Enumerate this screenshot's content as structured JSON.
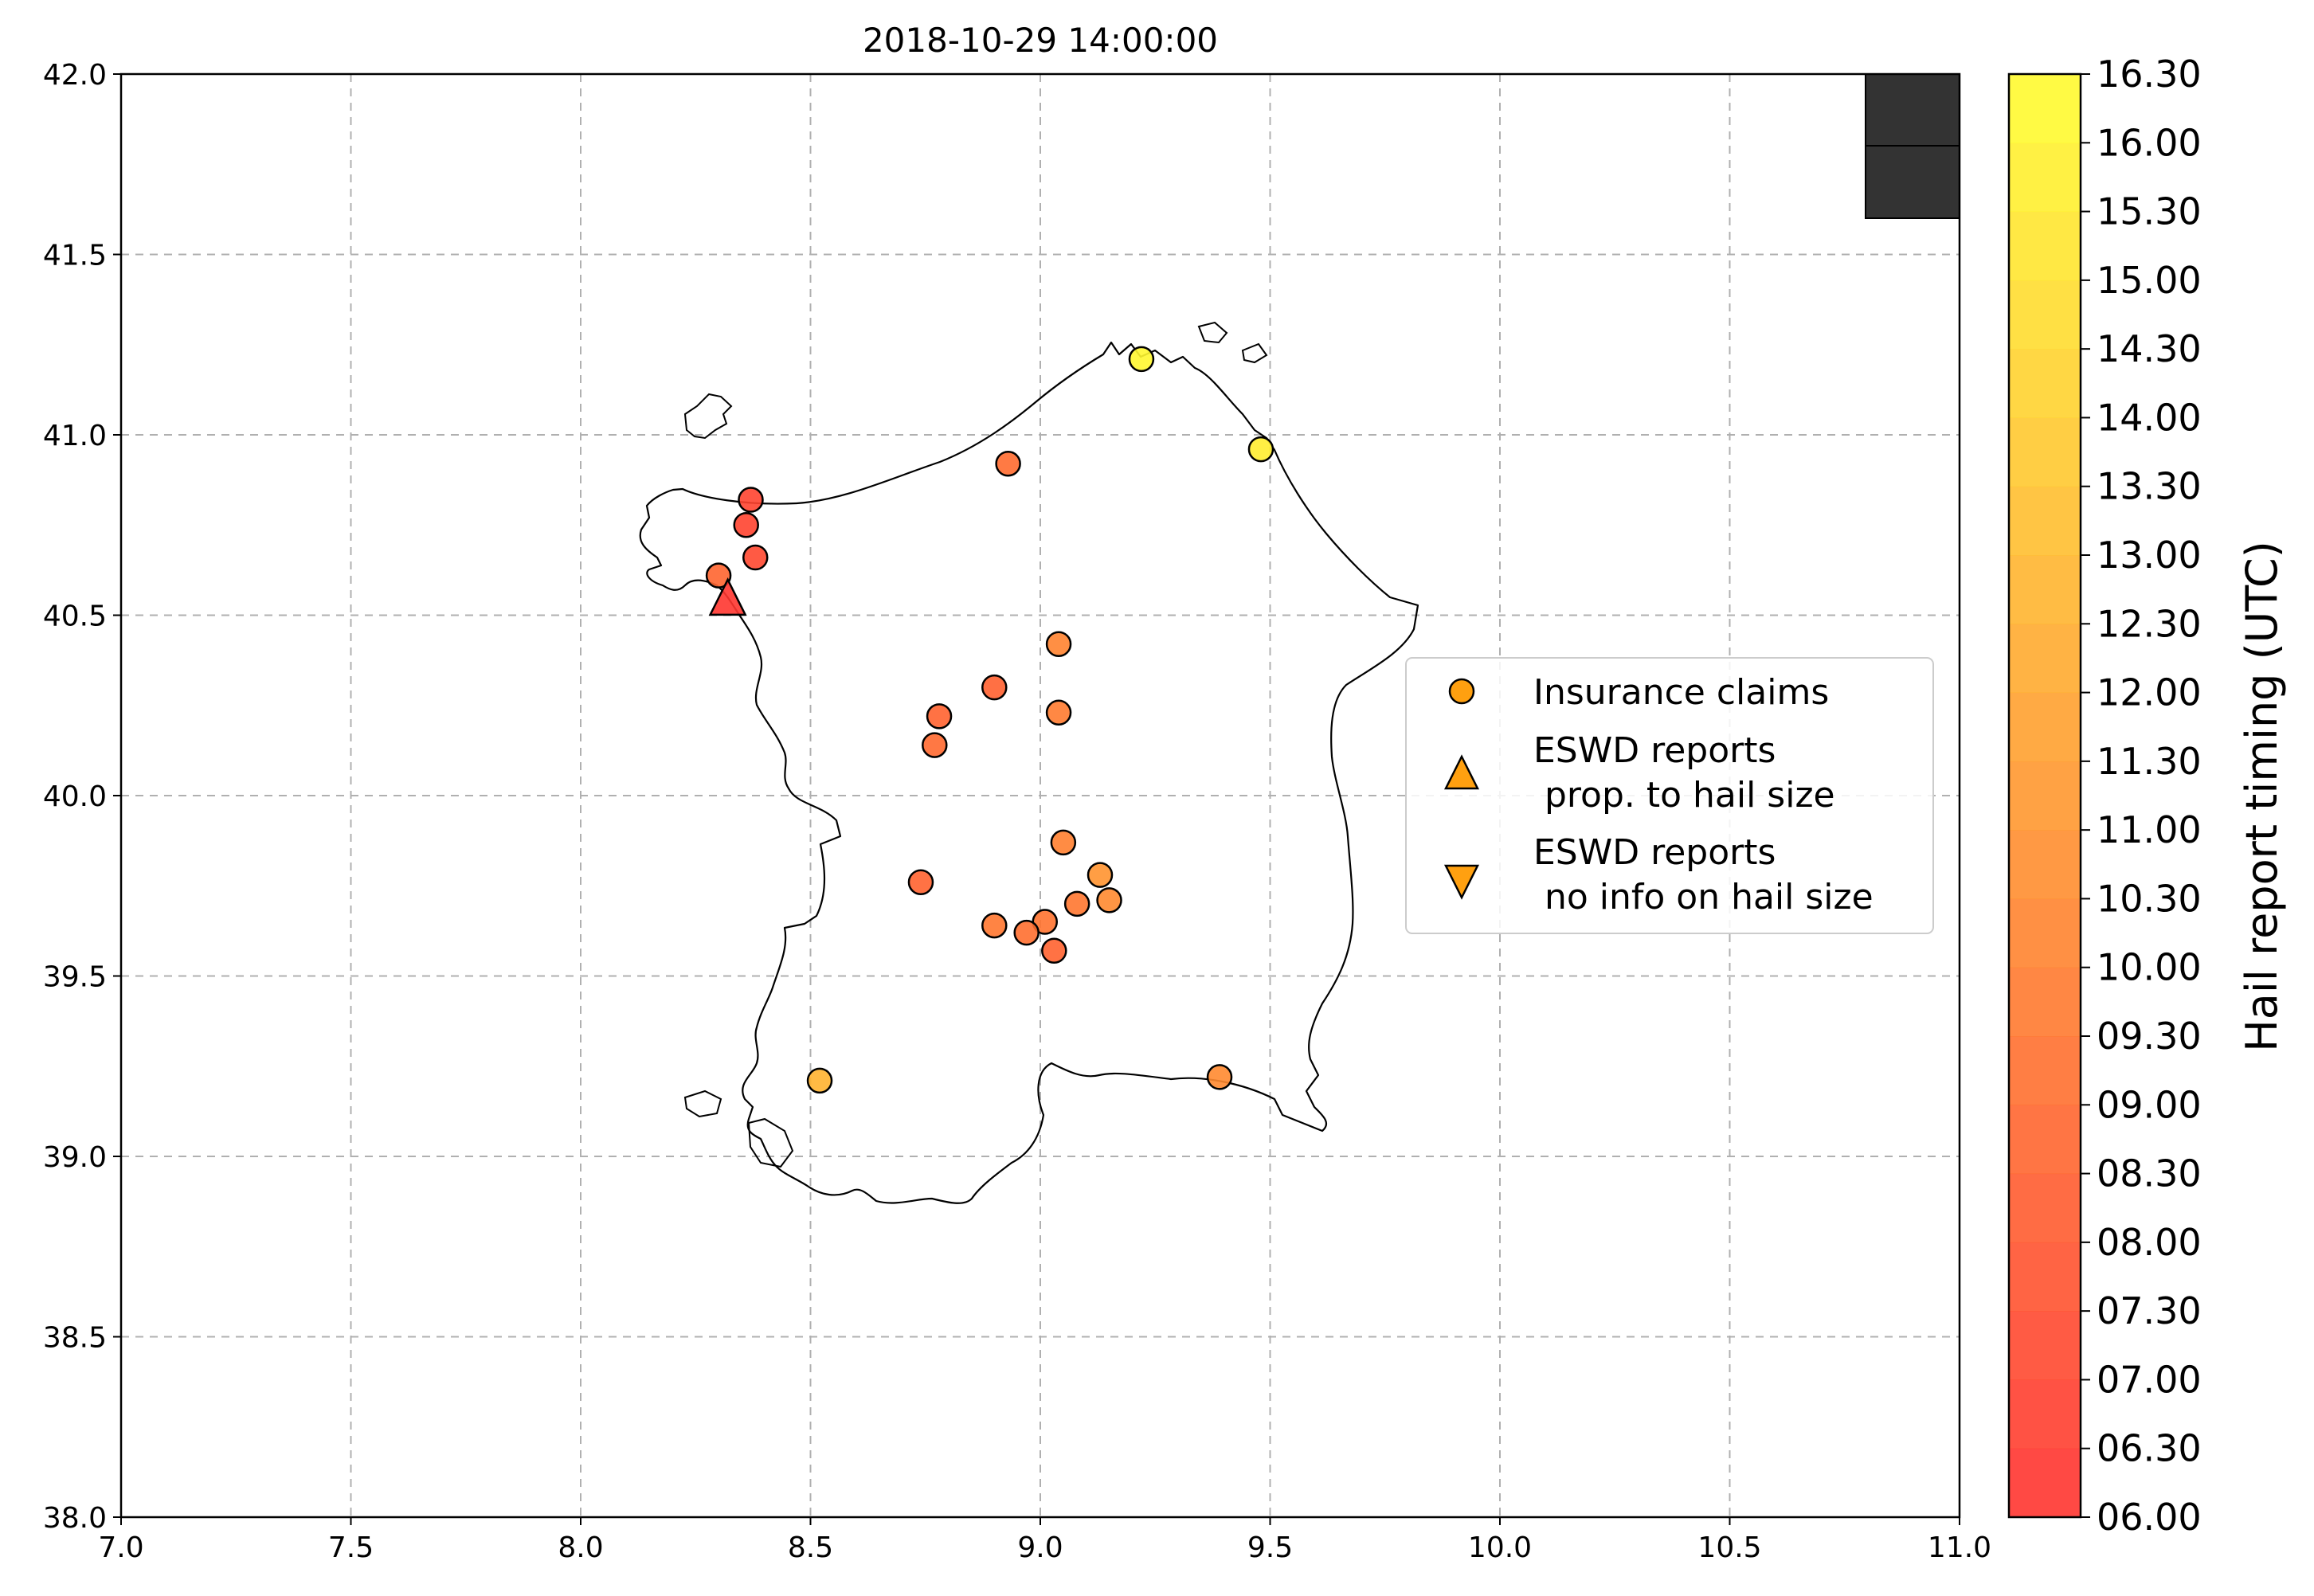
{
  "title": "2018-10-29 14:00:00",
  "map": {
    "xlim": [
      7.0,
      11.0
    ],
    "ylim": [
      38.0,
      42.0
    ],
    "xticks": [
      "7.0",
      "7.5",
      "8.0",
      "8.5",
      "9.0",
      "9.5",
      "10.0",
      "10.5",
      "11.0"
    ],
    "yticks": [
      "38.0",
      "38.5",
      "39.0",
      "39.5",
      "40.0",
      "40.5",
      "41.0",
      "41.5",
      "42.0"
    ],
    "grid": "dashed"
  },
  "colorbar": {
    "label": "Hail report timing (UTC)",
    "range": [
      6.0,
      16.5
    ],
    "ticks": [
      "06.00",
      "06.30",
      "07.00",
      "07.30",
      "08.00",
      "08.30",
      "09.00",
      "09.30",
      "10.00",
      "10.30",
      "11.00",
      "11.30",
      "12.00",
      "12.30",
      "13.00",
      "13.30",
      "14.00",
      "14.30",
      "15.00",
      "15.30",
      "16.00",
      "16.30"
    ],
    "colors": {
      "low": "#ff3030",
      "high": "#ffff30"
    }
  },
  "legend": {
    "items": [
      {
        "label": "Insurance claims",
        "marker": "circle"
      },
      {
        "label": "ESWD reports\n prop. to hail size",
        "marker": "triangle-up"
      },
      {
        "label": "ESWD reports\n no info on hail size",
        "marker": "triangle-down"
      }
    ],
    "placement": "center-right",
    "marker_color": "#ffa010"
  },
  "chart_data": {
    "type": "scatter",
    "xlabel": "",
    "ylabel": "",
    "xlim": [
      7.0,
      11.0
    ],
    "ylim": [
      38.0,
      42.0
    ],
    "series": [
      {
        "name": "Insurance claims",
        "marker": "circle",
        "points": [
          {
            "lon": 9.22,
            "lat": 41.21,
            "time": 16.1
          },
          {
            "lon": 9.48,
            "lat": 40.96,
            "time": 15.6
          },
          {
            "lon": 8.93,
            "lat": 40.92,
            "time": 9.0
          },
          {
            "lon": 8.37,
            "lat": 40.82,
            "time": 7.0
          },
          {
            "lon": 8.36,
            "lat": 40.75,
            "time": 7.0
          },
          {
            "lon": 8.38,
            "lat": 40.66,
            "time": 7.2
          },
          {
            "lon": 8.3,
            "lat": 40.61,
            "time": 8.7
          },
          {
            "lon": 9.04,
            "lat": 40.42,
            "time": 10.2
          },
          {
            "lon": 8.9,
            "lat": 40.3,
            "time": 8.5
          },
          {
            "lon": 9.04,
            "lat": 40.23,
            "time": 9.8
          },
          {
            "lon": 8.78,
            "lat": 40.22,
            "time": 8.6
          },
          {
            "lon": 8.77,
            "lat": 40.14,
            "time": 8.9
          },
          {
            "lon": 9.05,
            "lat": 39.87,
            "time": 10.0
          },
          {
            "lon": 9.13,
            "lat": 39.78,
            "time": 11.0
          },
          {
            "lon": 8.74,
            "lat": 39.76,
            "time": 8.6
          },
          {
            "lon": 9.15,
            "lat": 39.71,
            "time": 10.5
          },
          {
            "lon": 9.08,
            "lat": 39.7,
            "time": 9.6
          },
          {
            "lon": 9.01,
            "lat": 39.65,
            "time": 9.4
          },
          {
            "lon": 8.9,
            "lat": 39.64,
            "time": 9.6
          },
          {
            "lon": 8.97,
            "lat": 39.62,
            "time": 9.2
          },
          {
            "lon": 9.03,
            "lat": 39.57,
            "time": 8.6
          },
          {
            "lon": 8.52,
            "lat": 39.21,
            "time": 12.6
          },
          {
            "lon": 9.39,
            "lat": 39.22,
            "time": 10.5
          }
        ]
      },
      {
        "name": "ESWD reports\n prop. to hail size",
        "marker": "triangle-up",
        "points": [
          {
            "lon": 8.32,
            "lat": 40.55,
            "time": 6.3
          }
        ]
      },
      {
        "name": "ESWD reports\n no info on hail size",
        "marker": "triangle-down",
        "points": []
      }
    ]
  }
}
